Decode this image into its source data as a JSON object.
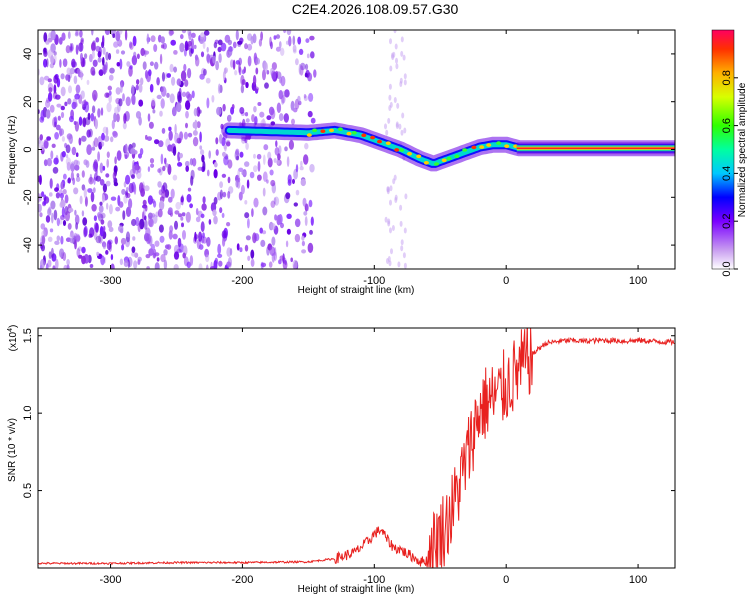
{
  "title": "C2E4.2026.108.09.57.G30",
  "chart_data": [
    {
      "type": "heatmap",
      "name": "spectrogram",
      "xlabel": "Height of straight line (km)",
      "ylabel": "Frequency (Hz)",
      "xlim": [
        -355,
        128
      ],
      "ylim": [
        -50,
        50
      ],
      "xticks": [
        -300,
        -200,
        -100,
        0,
        100
      ],
      "xtick_labels": [
        "-300",
        "-200",
        "-100",
        "0",
        "100"
      ],
      "yticks": [
        -40,
        -20,
        0,
        20,
        40
      ],
      "ytick_labels": [
        "-40",
        "-20",
        "0",
        "20",
        "40"
      ],
      "noise_region_x": [
        -355,
        -145
      ],
      "signal_track": {
        "x": [
          -210,
          -150,
          -130,
          -110,
          -95,
          -80,
          -65,
          -55,
          -45,
          -35,
          -20,
          -10,
          0,
          10,
          128
        ],
        "y": [
          8,
          7,
          8,
          6,
          3,
          0,
          -4,
          -6,
          -4,
          -2,
          1,
          2,
          2,
          0.5,
          0.5
        ]
      },
      "colorbar": {
        "label": "Normalized spectral amplitude",
        "range": [
          0.0,
          1.0
        ],
        "ticks": [
          0.0,
          0.2,
          0.4,
          0.6,
          0.8
        ],
        "tick_labels": [
          "0.0",
          "0.2",
          "0.4",
          "0.6",
          "0.8"
        ]
      }
    },
    {
      "type": "line",
      "name": "snr",
      "xlabel": "Height of straight line (km)",
      "ylabel": "SNR (10 * v/v)",
      "multiplier": "(x10",
      "multiplier_exp": "4",
      "multiplier_close": ")",
      "xlim": [
        -355,
        128
      ],
      "ylim": [
        0,
        15500
      ],
      "xticks": [
        -300,
        -200,
        -100,
        0,
        100
      ],
      "xtick_labels": [
        "-300",
        "-200",
        "-100",
        "0",
        "100"
      ],
      "yticks": [
        5000,
        10000,
        15000
      ],
      "ytick_labels": [
        "0.5",
        "1.0",
        "1.5"
      ],
      "color": "#e8211f",
      "series": [
        {
          "name": "SNR",
          "x": [
            -355,
            -300,
            -250,
            -200,
            -150,
            -130,
            -115,
            -105,
            -100,
            -95,
            -90,
            -85,
            -80,
            -75,
            -70,
            -65,
            -60,
            -55,
            -50,
            -45,
            -40,
            -35,
            -30,
            -25,
            -20,
            -15,
            -10,
            -5,
            0,
            5,
            10,
            15,
            20,
            25,
            30,
            40,
            50,
            60,
            70,
            80,
            90,
            100,
            110,
            120,
            128
          ],
          "y": [
            300,
            300,
            350,
            350,
            400,
            600,
            1000,
            1700,
            2200,
            2500,
            1800,
            1300,
            1200,
            900,
            700,
            400,
            500,
            1400,
            2200,
            2900,
            4000,
            5500,
            7000,
            8800,
            10200,
            10700,
            10900,
            11200,
            11800,
            12300,
            12800,
            13300,
            13800,
            14200,
            14500,
            14650,
            14700,
            14650,
            14700,
            14700,
            14650,
            14700,
            14650,
            14600,
            14600
          ]
        }
      ]
    }
  ]
}
